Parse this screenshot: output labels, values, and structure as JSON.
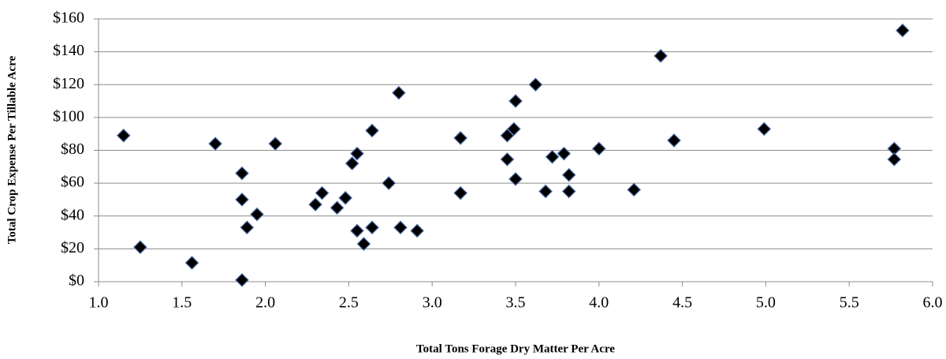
{
  "chart_data": {
    "type": "scatter",
    "x_label": "Total Tons Forage Dry Matter Per Acre",
    "y_label": "Total Crop Expense Per Tillable Acre",
    "color": "#000000",
    "edge_color": "#4f6fa8",
    "grid": true,
    "xlim": [
      1,
      6
    ],
    "ylim": [
      0,
      160
    ],
    "xticks": [
      {
        "value": 1,
        "label": "1.0"
      },
      {
        "value": 1.5,
        "label": "1.5"
      },
      {
        "value": 2,
        "label": "2.0"
      },
      {
        "value": 2.5,
        "label": "2.5"
      },
      {
        "value": 3,
        "label": "3.0"
      },
      {
        "value": 3.5,
        "label": "3.5"
      },
      {
        "value": 4,
        "label": "4.0"
      },
      {
        "value": 4.5,
        "label": "4.5"
      },
      {
        "value": 5,
        "label": "5.0"
      },
      {
        "value": 5.5,
        "label": "5.5"
      },
      {
        "value": 6,
        "label": "6.0"
      }
    ],
    "yticks": [
      {
        "value": 0,
        "label": "$0"
      },
      {
        "value": 20,
        "label": "$20"
      },
      {
        "value": 40,
        "label": "$40"
      },
      {
        "value": 60,
        "label": "$60"
      },
      {
        "value": 80,
        "label": "$80"
      },
      {
        "value": 100,
        "label": "$100"
      },
      {
        "value": 120,
        "label": "$120"
      },
      {
        "value": 140,
        "label": "$140"
      },
      {
        "value": 160,
        "label": "$160"
      }
    ],
    "x": [
      1.15,
      1.25,
      1.56,
      1.7,
      1.86,
      1.86,
      1.86,
      1.89,
      1.95,
      2.06,
      2.3,
      2.34,
      2.43,
      2.48,
      2.52,
      2.55,
      2.55,
      2.59,
      2.64,
      2.64,
      2.74,
      2.8,
      2.81,
      2.91,
      3.17,
      3.17,
      3.45,
      3.45,
      3.49,
      3.5,
      3.5,
      3.62,
      3.68,
      3.72,
      3.79,
      3.82,
      3.82,
      4.0,
      4.21,
      4.37,
      4.45,
      4.99,
      5.77,
      5.77,
      5.82
    ],
    "values": [
      89,
      21,
      11.5,
      84,
      66,
      50,
      1,
      33,
      41,
      84,
      47,
      54,
      45,
      51,
      72,
      78,
      31,
      23,
      92,
      33,
      60,
      115,
      33,
      31,
      87.5,
      54,
      89,
      74.5,
      93,
      110,
      62.5,
      120,
      55,
      76,
      78,
      65,
      55,
      81,
      56,
      137.5,
      86,
      93,
      81,
      74.5,
      153
    ]
  }
}
